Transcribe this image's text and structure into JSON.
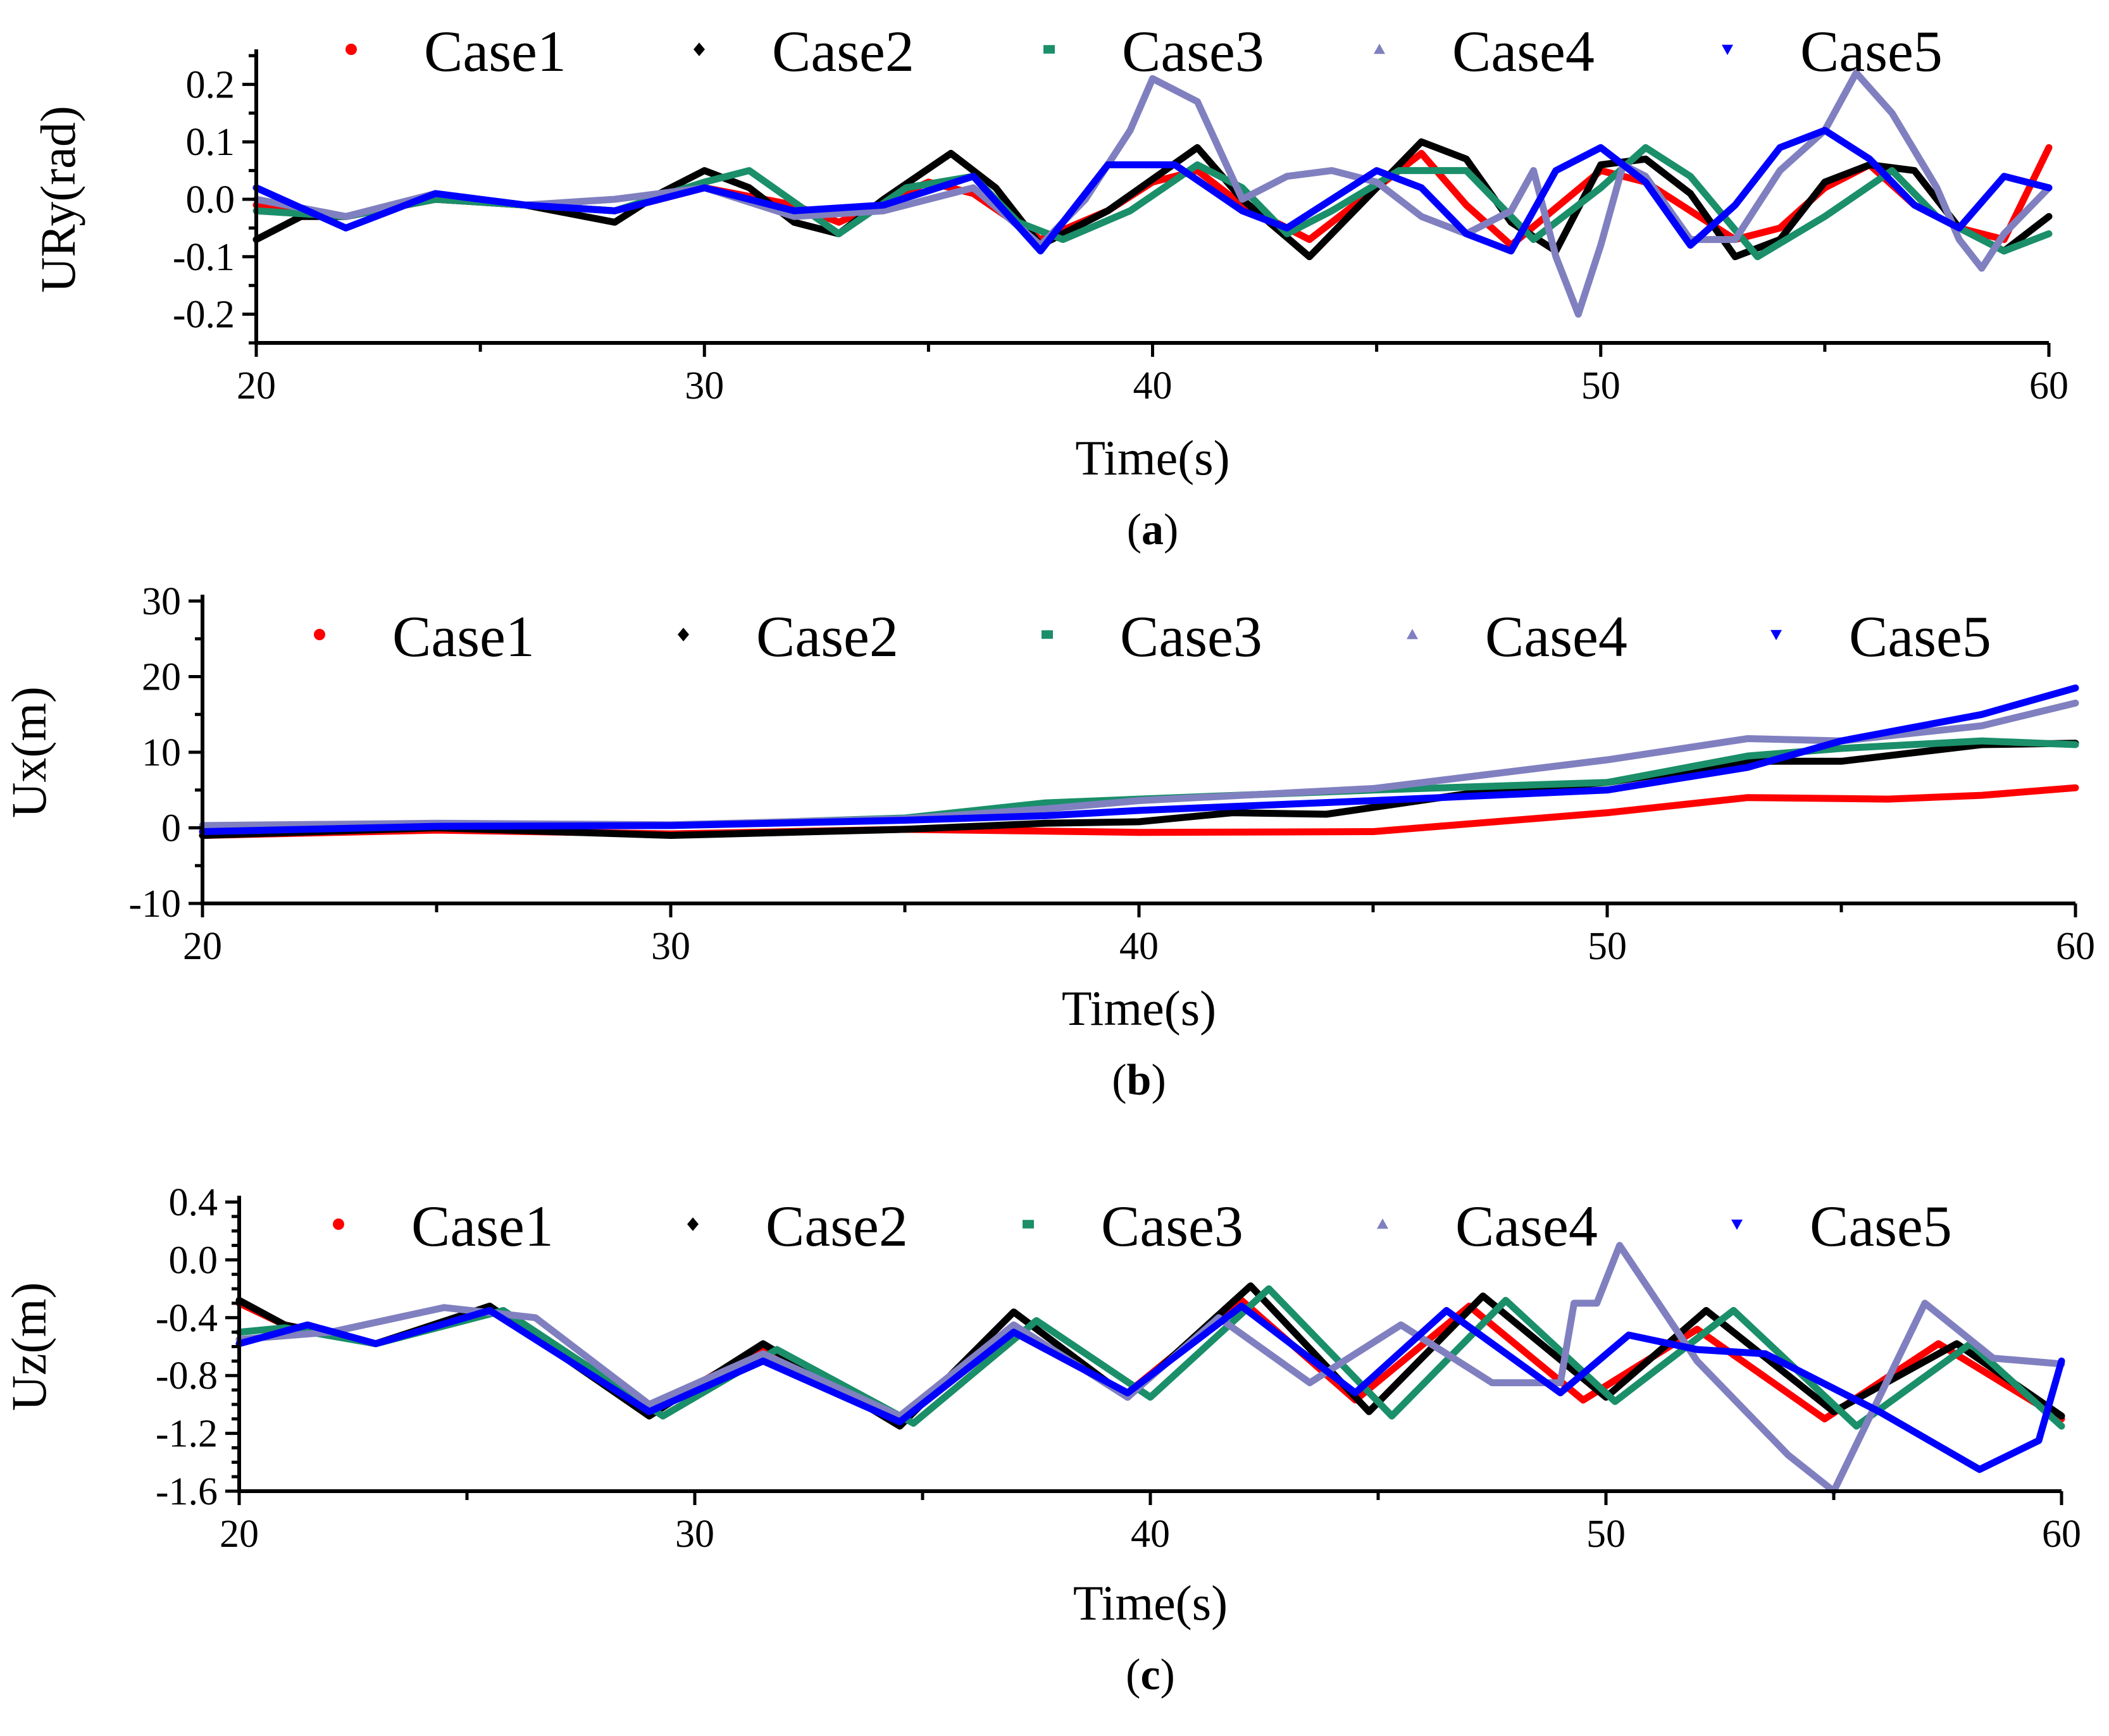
{
  "chart_data": [
    {
      "panel": "a",
      "caption": "(a)",
      "type": "line",
      "title": "",
      "xlabel": "Time(s)",
      "ylabel": "URy(rad)",
      "xlim": [
        20,
        60
      ],
      "ylim": [
        -0.25,
        0.25
      ],
      "xticks": [
        20,
        30,
        40,
        50,
        60
      ],
      "xtick_labels": [
        "20",
        "30",
        "40",
        "50",
        "60"
      ],
      "yticks": [
        -0.2,
        -0.1,
        0.0,
        0.1,
        0.2
      ],
      "ytick_labels": [
        "-0.2",
        "-0.1",
        "0.0",
        "0.1",
        "0.2"
      ],
      "legend_position": "top",
      "legend_markers": [
        "dot",
        "diamond",
        "square",
        "triangle",
        "triangle-down"
      ],
      "series": [
        {
          "name": "Case1",
          "color": "#ff0000",
          "x": [
            20,
            22,
            24,
            26,
            28,
            30,
            32,
            33,
            35,
            36,
            37.5,
            39,
            40,
            41,
            42,
            43.5,
            45,
            46,
            47,
            48,
            50,
            51,
            52,
            53,
            54,
            55,
            56,
            57,
            58,
            59,
            60
          ],
          "values": [
            -0.01,
            -0.03,
            0.0,
            -0.01,
            -0.02,
            0.02,
            -0.01,
            -0.04,
            0.03,
            0.01,
            -0.07,
            -0.02,
            0.03,
            0.05,
            -0.01,
            -0.07,
            0.02,
            0.08,
            -0.01,
            -0.08,
            0.05,
            0.03,
            -0.02,
            -0.07,
            -0.05,
            0.02,
            0.06,
            -0.01,
            -0.05,
            -0.07,
            0.09
          ]
        },
        {
          "name": "Case2",
          "color": "#000000",
          "x": [
            20,
            21,
            22,
            24,
            26,
            28,
            29,
            30,
            31,
            32,
            33,
            34,
            35.5,
            36.5,
            37.5,
            39,
            41,
            42,
            43.5,
            45,
            46,
            47,
            48,
            49,
            50,
            51,
            52,
            53,
            54,
            55,
            56,
            57,
            58,
            59,
            60
          ],
          "values": [
            -0.07,
            -0.03,
            -0.03,
            0.0,
            -0.01,
            -0.04,
            0.01,
            0.05,
            0.02,
            -0.04,
            -0.06,
            0.0,
            0.08,
            0.02,
            -0.08,
            -0.02,
            0.09,
            0.0,
            -0.1,
            0.02,
            0.1,
            0.07,
            -0.04,
            -0.09,
            0.06,
            0.07,
            0.01,
            -0.1,
            -0.07,
            0.03,
            0.06,
            0.05,
            -0.05,
            -0.09,
            -0.03
          ]
        },
        {
          "name": "Case3",
          "color": "#1a8f6a",
          "x": [
            20,
            22,
            24,
            26,
            28,
            30,
            31,
            33,
            34.5,
            36,
            37,
            38,
            39.5,
            41,
            42,
            43,
            44,
            45.5,
            47,
            48.5,
            50,
            51,
            52,
            53.5,
            55,
            56.5,
            57.5,
            59,
            60
          ],
          "values": [
            -0.02,
            -0.03,
            0.0,
            -0.01,
            -0.02,
            0.03,
            0.05,
            -0.06,
            0.02,
            0.04,
            -0.04,
            -0.07,
            -0.02,
            0.06,
            0.02,
            -0.06,
            -0.02,
            0.05,
            0.05,
            -0.07,
            0.02,
            0.09,
            0.04,
            -0.1,
            -0.03,
            0.05,
            -0.03,
            -0.09,
            -0.06
          ]
        },
        {
          "name": "Case4",
          "color": "#8080c0",
          "x": [
            20,
            22,
            24,
            26,
            28,
            30,
            32,
            34,
            36,
            37.5,
            38.5,
            39.5,
            40,
            41,
            42,
            43,
            44,
            45,
            46,
            47,
            48,
            48.5,
            49,
            49.5,
            50,
            50.5,
            51,
            52,
            53,
            54,
            55,
            55.7,
            56.5,
            57.5,
            58,
            58.5,
            59,
            60
          ],
          "values": [
            0.0,
            -0.03,
            0.01,
            -0.01,
            0.0,
            0.02,
            -0.03,
            -0.02,
            0.02,
            -0.08,
            0.0,
            0.12,
            0.21,
            0.17,
            0.0,
            0.04,
            0.05,
            0.03,
            -0.03,
            -0.06,
            -0.02,
            0.05,
            -0.1,
            -0.2,
            -0.08,
            0.06,
            0.04,
            -0.07,
            -0.07,
            0.05,
            0.12,
            0.22,
            0.15,
            0.02,
            -0.07,
            -0.12,
            -0.06,
            0.02
          ]
        },
        {
          "name": "Case5",
          "color": "#0000ff",
          "x": [
            20,
            22,
            24,
            26,
            28,
            30,
            32,
            34,
            36,
            37.5,
            39,
            40.5,
            42,
            43,
            44,
            45,
            46,
            47,
            48,
            49,
            50,
            51,
            52,
            53,
            54,
            55,
            56,
            57,
            58,
            59,
            60
          ],
          "values": [
            0.02,
            -0.05,
            0.01,
            -0.01,
            -0.02,
            0.02,
            -0.02,
            -0.01,
            0.04,
            -0.09,
            0.06,
            0.06,
            -0.02,
            -0.05,
            0.0,
            0.05,
            0.02,
            -0.06,
            -0.09,
            0.05,
            0.09,
            0.03,
            -0.08,
            -0.01,
            0.09,
            0.12,
            0.07,
            -0.01,
            -0.05,
            0.04,
            0.02
          ]
        }
      ]
    },
    {
      "panel": "b",
      "caption": "(b)",
      "type": "line",
      "title": "",
      "xlabel": "Time(s)",
      "ylabel": "Ux(m)",
      "xlim": [
        20,
        60
      ],
      "ylim": [
        -10,
        30
      ],
      "xticks": [
        20,
        30,
        40,
        50,
        60
      ],
      "xtick_labels": [
        "20",
        "30",
        "40",
        "50",
        "60"
      ],
      "yticks": [
        -10,
        0,
        10,
        20,
        30
      ],
      "ytick_labels": [
        "-10",
        "0",
        "10",
        "20",
        "30"
      ],
      "legend_position": "top",
      "legend_markers": [
        "dot",
        "diamond",
        "square",
        "triangle",
        "triangle-down"
      ],
      "series": [
        {
          "name": "Case1",
          "color": "#ff0000",
          "x": [
            20,
            25,
            30,
            35,
            40,
            45,
            50,
            53,
            56,
            58,
            60
          ],
          "values": [
            -1,
            -0.3,
            -0.8,
            -0.2,
            -0.6,
            -0.5,
            2,
            4,
            3.8,
            4.3,
            5.3
          ]
        },
        {
          "name": "Case2",
          "color": "#000000",
          "x": [
            20,
            25,
            30,
            35,
            38,
            40,
            42,
            44,
            47,
            50,
            53,
            55,
            58,
            60
          ],
          "values": [
            -1,
            0,
            -1,
            -0.2,
            0.6,
            0.8,
            2,
            1.8,
            4.5,
            6,
            8.8,
            8.8,
            11,
            11.2
          ]
        },
        {
          "name": "Case3",
          "color": "#1a8f6a",
          "x": [
            20,
            25,
            30,
            35,
            38,
            40,
            45,
            50,
            53,
            55,
            58,
            60
          ],
          "values": [
            0,
            0.4,
            0.3,
            1.3,
            3.3,
            3.8,
            5,
            6,
            9.5,
            10.5,
            11.5,
            11
          ]
        },
        {
          "name": "Case4",
          "color": "#8080c0",
          "x": [
            20,
            25,
            30,
            35,
            38,
            40,
            45,
            50,
            53,
            55,
            58,
            60
          ],
          "values": [
            0.3,
            0.6,
            0.4,
            1.2,
            2.5,
            3.6,
            5.2,
            9,
            11.8,
            11.5,
            13.5,
            16.5
          ]
        },
        {
          "name": "Case5",
          "color": "#0000ff",
          "x": [
            20,
            25,
            30,
            35,
            38,
            40,
            45,
            50,
            53,
            55,
            58,
            60
          ],
          "values": [
            -0.5,
            0.2,
            0.3,
            1,
            1.6,
            2.3,
            3.6,
            5,
            8,
            11.5,
            15,
            18.5
          ]
        }
      ]
    },
    {
      "panel": "c",
      "caption": "(c)",
      "type": "line",
      "title": "",
      "xlabel": "Time(s)",
      "ylabel": "Uz(m)",
      "xlim": [
        20,
        60
      ],
      "ylim": [
        -1.6,
        0.4
      ],
      "xticks": [
        20,
        30,
        40,
        50,
        60
      ],
      "xtick_labels": [
        "20",
        "30",
        "40",
        "50",
        "60"
      ],
      "yticks": [
        -1.6,
        -1.2,
        -0.8,
        -0.4,
        0.0,
        0.4
      ],
      "ytick_labels": [
        "-1.6",
        "-1.2",
        "-0.8",
        "-0.4",
        "0.0",
        "0.4"
      ],
      "legend_position": "top",
      "legend_markers": [
        "dot",
        "diamond",
        "square",
        "triangle",
        "triangle-down"
      ],
      "series": [
        {
          "name": "Case1",
          "color": "#ff0000",
          "x": [
            20,
            21,
            23,
            25.5,
            29,
            31.5,
            34.5,
            37,
            39.5,
            42,
            44.5,
            47,
            49.5,
            52,
            54.8,
            57.3,
            60
          ],
          "values": [
            -0.3,
            -0.45,
            -0.58,
            -0.33,
            -1.05,
            -0.6,
            -1.12,
            -0.5,
            -0.92,
            -0.28,
            -0.97,
            -0.32,
            -0.97,
            -0.48,
            -1.1,
            -0.58,
            -1.1
          ]
        },
        {
          "name": "Case2",
          "color": "#000000",
          "x": [
            20,
            21,
            23,
            25.5,
            29,
            31.5,
            34.5,
            37,
            39.5,
            42.2,
            44.8,
            47.3,
            50,
            52.2,
            55,
            57.7,
            60
          ],
          "values": [
            -0.28,
            -0.45,
            -0.58,
            -0.32,
            -1.08,
            -0.58,
            -1.15,
            -0.36,
            -0.95,
            -0.18,
            -1.05,
            -0.25,
            -0.95,
            -0.35,
            -1.05,
            -0.58,
            -1.08
          ]
        },
        {
          "name": "Case3",
          "color": "#1a8f6a",
          "x": [
            20,
            21,
            23,
            25.8,
            29.3,
            31.8,
            34.8,
            37.5,
            40,
            42.6,
            45.3,
            47.8,
            50.2,
            52.8,
            55.5,
            58,
            60
          ],
          "values": [
            -0.5,
            -0.47,
            -0.58,
            -0.35,
            -1.08,
            -0.62,
            -1.13,
            -0.42,
            -0.95,
            -0.2,
            -1.08,
            -0.28,
            -0.98,
            -0.35,
            -1.15,
            -0.58,
            -1.15
          ]
        },
        {
          "name": "Case4",
          "color": "#8080c0",
          "x": [
            20,
            22,
            24.5,
            26.5,
            29,
            31.5,
            34.5,
            37,
            39.5,
            41.5,
            43.5,
            45.5,
            47.5,
            49,
            49.3,
            49.8,
            50.3,
            52,
            54,
            55,
            57,
            58.5,
            60
          ],
          "values": [
            -0.55,
            -0.5,
            -0.33,
            -0.4,
            -1.0,
            -0.65,
            -1.08,
            -0.45,
            -0.95,
            -0.4,
            -0.85,
            -0.45,
            -0.85,
            -0.85,
            -0.3,
            -0.3,
            0.1,
            -0.7,
            -1.35,
            -1.6,
            -0.3,
            -0.68,
            -0.72
          ]
        },
        {
          "name": "Case5",
          "color": "#0000ff",
          "x": [
            20,
            21.5,
            23,
            25.5,
            29,
            31.5,
            34.5,
            37,
            39.5,
            42,
            44.5,
            46.5,
            49,
            50.5,
            52,
            53.5,
            56,
            58.2,
            59.5,
            60
          ],
          "values": [
            -0.58,
            -0.45,
            -0.58,
            -0.35,
            -1.05,
            -0.7,
            -1.12,
            -0.5,
            -0.92,
            -0.32,
            -0.92,
            -0.35,
            -0.92,
            -0.52,
            -0.62,
            -0.65,
            -1.05,
            -1.45,
            -1.25,
            -0.7
          ]
        }
      ]
    }
  ]
}
